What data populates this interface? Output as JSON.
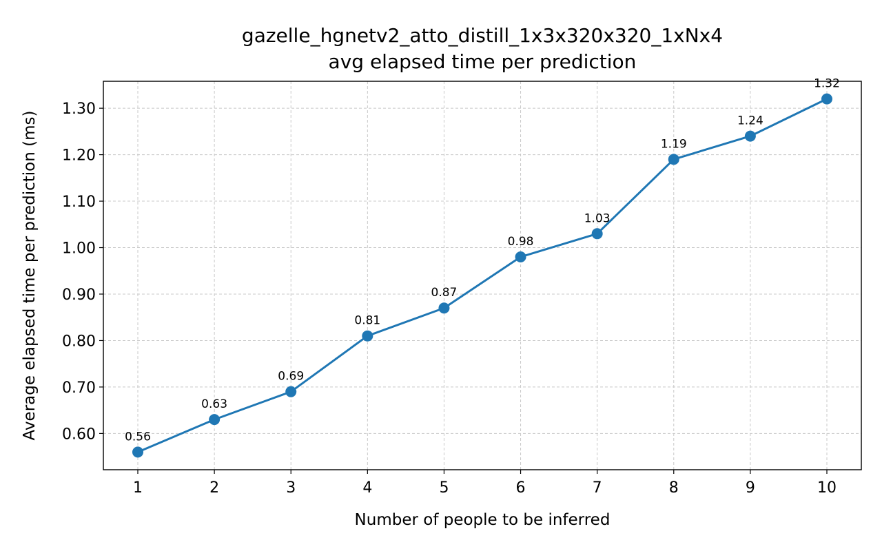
{
  "chart_data": {
    "type": "line",
    "title": "gazelle_hgnetv2_atto_distill_1x3x320x320_1xNx4",
    "subtitle": "avg elapsed time per prediction",
    "xlabel": "Number of people to be inferred",
    "ylabel": "Average elapsed time per prediction (ms)",
    "x": [
      1,
      2,
      3,
      4,
      5,
      6,
      7,
      8,
      9,
      10
    ],
    "series": [
      {
        "name": "avg elapsed time",
        "values": [
          0.56,
          0.63,
          0.69,
          0.81,
          0.87,
          0.98,
          1.03,
          1.19,
          1.24,
          1.32
        ],
        "labels": [
          "0.56",
          "0.63",
          "0.69",
          "0.81",
          "0.87",
          "0.98",
          "1.03",
          "1.19",
          "1.24",
          "1.32"
        ],
        "color": "#1f77b4"
      }
    ],
    "xlim": [
      0.55,
      10.45
    ],
    "ylim": [
      0.522,
      1.358
    ],
    "yticks": [
      0.6,
      0.7,
      0.8,
      0.9,
      1.0,
      1.1,
      1.2,
      1.3
    ],
    "yticklabels": [
      "0.60",
      "0.70",
      "0.80",
      "0.90",
      "1.00",
      "1.10",
      "1.20",
      "1.30"
    ],
    "xticklabels": [
      "1",
      "2",
      "3",
      "4",
      "5",
      "6",
      "7",
      "8",
      "9",
      "10"
    ],
    "grid": true,
    "legend": "none"
  }
}
